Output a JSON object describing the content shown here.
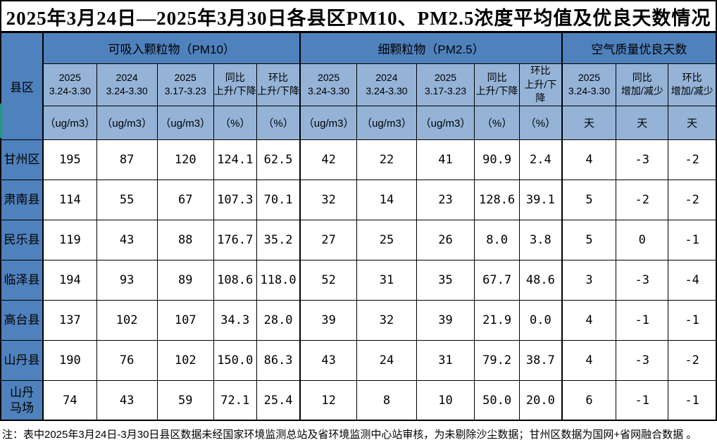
{
  "title": "2025年3月24日—2025年3月30日各县区PM10、PM2.5浓度平均值及优良天数情况",
  "footnote": "注：表中2025年3月24日-3月30日县区数据未经国家环境监测总站及省环境监测中心站审核，为未剔除沙尘数据；甘州区数据为国网+省网融合数据 。",
  "colors": {
    "header_blue": "#4f81bd",
    "subheader_blue": "#95b3d7",
    "border_black": "#000000",
    "accent_green": "#1f9b7e"
  },
  "table": {
    "corner_label": "县区",
    "groups": [
      {
        "label": "可吸入颗粒物（PM10）",
        "span": 5
      },
      {
        "label": "细颗粒物（PM2.5）",
        "span": 5
      },
      {
        "label": "空气质量优良天数",
        "span": 3
      }
    ],
    "columns": [
      {
        "line1": "2025",
        "line2": "3.24-3.30",
        "unit": "（ug/m3）"
      },
      {
        "line1": "2024",
        "line2": "3.24-3.30",
        "unit": "（ug/m3）"
      },
      {
        "line1": "2025",
        "line2": "3.17-3.23",
        "unit": "（ug/m3）"
      },
      {
        "line1": "同比",
        "line2": "上升/下降",
        "unit": "（%）"
      },
      {
        "line1": "环比",
        "line2": "上升/下降",
        "unit": "（%）"
      },
      {
        "line1": "2025",
        "line2": "3.24-3.30",
        "unit": "（ug/m3）"
      },
      {
        "line1": "2024",
        "line2": "3.24-3.30",
        "unit": "（ug/m3）"
      },
      {
        "line1": "2025",
        "line2": "3.17-3.23",
        "unit": "（ug/m3）"
      },
      {
        "line1": "同比",
        "line2": "上升/下降",
        "unit": "（%）"
      },
      {
        "line1": "环比",
        "line2": "上升/下降",
        "unit": "（%）"
      },
      {
        "line1": "2025",
        "line2": "3.24-3.30",
        "unit": "天"
      },
      {
        "line1": "同比",
        "line2": "增加/减少",
        "unit": "天"
      },
      {
        "line1": "环比",
        "line2": "增加/减少",
        "unit": "天"
      }
    ],
    "rows": [
      {
        "name": "甘州区",
        "values": [
          "195",
          "87",
          "120",
          "124.1",
          "62.5",
          "42",
          "22",
          "41",
          "90.9",
          "2.4",
          "4",
          "-3",
          "-2"
        ]
      },
      {
        "name": "肃南县",
        "values": [
          "114",
          "55",
          "67",
          "107.3",
          "70.1",
          "32",
          "14",
          "23",
          "128.6",
          "39.1",
          "5",
          "-2",
          "-2"
        ]
      },
      {
        "name": "民乐县",
        "values": [
          "119",
          "43",
          "88",
          "176.7",
          "35.2",
          "27",
          "25",
          "26",
          "8.0",
          "3.8",
          "5",
          "0",
          "-1"
        ]
      },
      {
        "name": "临泽县",
        "values": [
          "194",
          "93",
          "89",
          "108.6",
          "118.0",
          "52",
          "31",
          "35",
          "67.7",
          "48.6",
          "3",
          "-3",
          "-4"
        ]
      },
      {
        "name": "高台县",
        "values": [
          "137",
          "102",
          "107",
          "34.3",
          "28.0",
          "39",
          "32",
          "39",
          "21.9",
          "0.0",
          "4",
          "-1",
          "-1"
        ]
      },
      {
        "name": "山丹县",
        "values": [
          "190",
          "76",
          "102",
          "150.0",
          "86.3",
          "43",
          "24",
          "31",
          "79.2",
          "38.7",
          "4",
          "-3",
          "-2"
        ]
      },
      {
        "name": "山丹马场",
        "display_name": "山丹\n马场",
        "values": [
          "74",
          "43",
          "59",
          "72.1",
          "25.4",
          "12",
          "8",
          "10",
          "50.0",
          "20.0",
          "6",
          "-1",
          "-1"
        ]
      }
    ]
  }
}
